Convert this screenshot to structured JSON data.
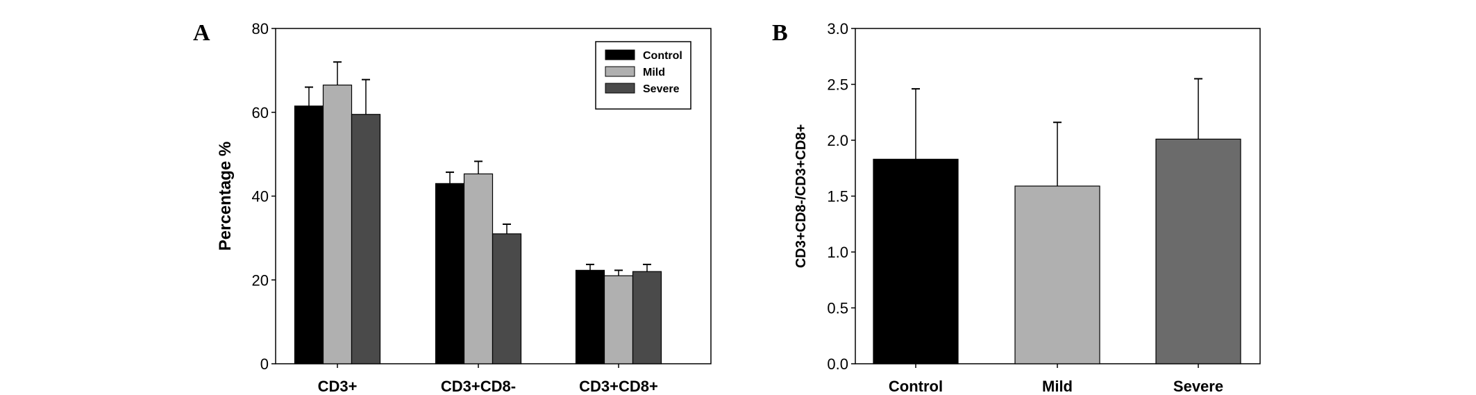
{
  "chart_data": [
    {
      "panel": "A",
      "type": "bar",
      "ylabel": "Percentage %",
      "ylim": [
        0,
        80
      ],
      "yticks": [
        "0",
        "20",
        "40",
        "60",
        "80"
      ],
      "categories": [
        "CD3+",
        "CD3+CD8-",
        "CD3+CD8+"
      ],
      "series": [
        {
          "name": "Control",
          "color": "#000000",
          "values": [
            61.5,
            43.0,
            22.3
          ],
          "error": [
            4.5,
            2.7,
            1.4
          ]
        },
        {
          "name": "Mild",
          "color": "#b0b0b0",
          "values": [
            66.5,
            45.3,
            21.0
          ],
          "error": [
            5.5,
            3.0,
            1.3
          ]
        },
        {
          "name": "Severe",
          "color": "#4a4a4a",
          "values": [
            59.5,
            31.0,
            22.0
          ],
          "error": [
            8.3,
            2.3,
            1.7
          ]
        }
      ],
      "legend": "top-right"
    },
    {
      "panel": "B",
      "type": "bar",
      "ylabel": "CD3+CD8-/CD3+CD8+",
      "ylim": [
        0,
        3.0
      ],
      "yticks": [
        "0.0",
        "0.5",
        "1.0",
        "1.5",
        "2.0",
        "2.5",
        "3.0"
      ],
      "categories": [
        "Control",
        "Mild",
        "Severe"
      ],
      "values": [
        1.83,
        1.59,
        2.01
      ],
      "error": [
        0.63,
        0.57,
        0.54
      ],
      "colors": [
        "#000000",
        "#b0b0b0",
        "#6b6b6b"
      ]
    }
  ]
}
